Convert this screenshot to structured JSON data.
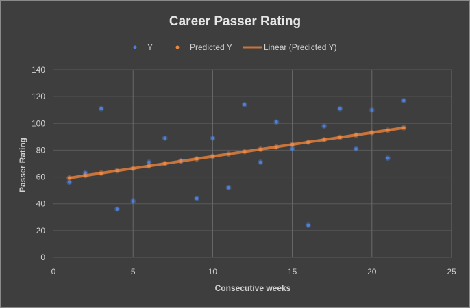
{
  "chart_data": {
    "type": "scatter",
    "title": "Career Passer Rating",
    "xlabel": "Consecutive weeks",
    "ylabel": "Passer Rating",
    "xlim": [
      0,
      25
    ],
    "ylim": [
      0,
      140
    ],
    "x_ticks": [
      0,
      5,
      10,
      15,
      20,
      25
    ],
    "y_ticks": [
      0,
      20,
      40,
      60,
      80,
      100,
      120,
      140
    ],
    "grid": true,
    "legend_position": "top",
    "legend": [
      "Y",
      "Predicted Y",
      "Linear (Predicted Y)"
    ],
    "series": [
      {
        "name": "Y",
        "color": "#4f7fd6",
        "x": [
          1,
          2,
          3,
          4,
          5,
          6,
          7,
          8,
          9,
          10,
          11,
          12,
          13,
          14,
          15,
          16,
          17,
          18,
          19,
          20,
          21,
          22
        ],
        "y": [
          56,
          63,
          111,
          36,
          42,
          71,
          89,
          72,
          44,
          89,
          52,
          114,
          71,
          101,
          81,
          24,
          98,
          111,
          81,
          110,
          74,
          117
        ]
      },
      {
        "name": "Predicted Y",
        "color": "#e8894a",
        "x": [
          1,
          2,
          3,
          4,
          5,
          6,
          7,
          8,
          9,
          10,
          11,
          12,
          13,
          14,
          15,
          16,
          17,
          18,
          19,
          20,
          21,
          22
        ],
        "y": [
          59.3,
          61.1,
          62.9,
          64.7,
          66.4,
          68.2,
          70.0,
          71.8,
          73.5,
          75.3,
          77.1,
          78.9,
          80.7,
          82.4,
          84.2,
          86.0,
          87.8,
          89.6,
          91.3,
          93.1,
          94.9,
          96.7
        ]
      }
    ],
    "trendline": {
      "name": "Linear (Predicted Y)",
      "color": "#c8743a",
      "x": [
        1,
        22
      ],
      "y": [
        59.3,
        96.7
      ]
    }
  }
}
